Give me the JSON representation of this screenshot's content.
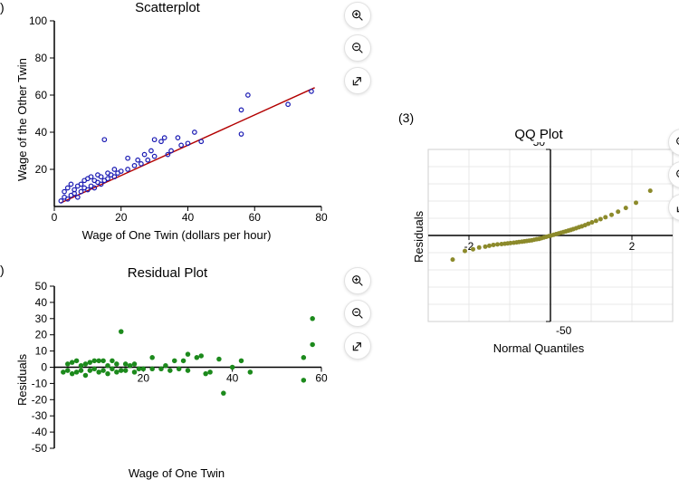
{
  "panel_indices": {
    "scatter": ")",
    "residual": ")",
    "qq": "(3)"
  },
  "scatter": {
    "type": "scatter",
    "title": "Scatterplot",
    "title_fontsize": 15,
    "xlabel": "Wage of One Twin (dollars per hour)",
    "ylabel": "Wage of the Other Twin",
    "label_fontsize": 13,
    "xlim": [
      0,
      80
    ],
    "ylim": [
      0,
      100
    ],
    "xticks": [
      0,
      20,
      40,
      60,
      80
    ],
    "yticks": [
      20,
      40,
      60,
      80,
      100
    ],
    "tick_fontsize": 12,
    "marker": {
      "shape": "circle",
      "size": 4.5,
      "stroke": "#1a1ab3",
      "fill": "none",
      "stroke_width": 1.2
    },
    "line": {
      "color": "#b30000",
      "width": 1.4,
      "x1": 2,
      "y1": 2,
      "x2": 78,
      "y2": 64
    },
    "axis_color": "#000000",
    "points": [
      [
        2,
        3
      ],
      [
        3,
        5
      ],
      [
        3,
        8
      ],
      [
        4,
        4
      ],
      [
        4,
        10
      ],
      [
        5,
        6
      ],
      [
        5,
        12
      ],
      [
        6,
        7
      ],
      [
        6,
        9
      ],
      [
        7,
        5
      ],
      [
        7,
        11
      ],
      [
        8,
        8
      ],
      [
        8,
        12
      ],
      [
        9,
        10
      ],
      [
        9,
        14
      ],
      [
        10,
        9
      ],
      [
        10,
        15
      ],
      [
        11,
        11
      ],
      [
        11,
        16
      ],
      [
        12,
        10
      ],
      [
        12,
        14
      ],
      [
        13,
        13
      ],
      [
        13,
        17
      ],
      [
        14,
        12
      ],
      [
        14,
        16
      ],
      [
        15,
        14
      ],
      [
        15,
        36
      ],
      [
        16,
        15
      ],
      [
        16,
        18
      ],
      [
        17,
        17
      ],
      [
        18,
        16
      ],
      [
        18,
        20
      ],
      [
        19,
        18
      ],
      [
        20,
        19
      ],
      [
        22,
        26
      ],
      [
        22,
        20
      ],
      [
        24,
        22
      ],
      [
        25,
        25
      ],
      [
        26,
        23
      ],
      [
        27,
        28
      ],
      [
        28,
        25
      ],
      [
        29,
        30
      ],
      [
        30,
        27
      ],
      [
        30,
        36
      ],
      [
        32,
        35
      ],
      [
        33,
        37
      ],
      [
        34,
        28
      ],
      [
        35,
        30
      ],
      [
        37,
        37
      ],
      [
        38,
        33
      ],
      [
        40,
        34
      ],
      [
        42,
        40
      ],
      [
        44,
        35
      ],
      [
        56,
        39
      ],
      [
        56,
        52
      ],
      [
        58,
        60
      ],
      [
        70,
        55
      ],
      [
        77,
        62
      ]
    ]
  },
  "residual": {
    "type": "scatter",
    "title": "Residual Plot",
    "title_fontsize": 15,
    "xlabel": "Wage of One Twin",
    "ylabel": "Residuals",
    "label_fontsize": 13,
    "xlim": [
      0,
      60
    ],
    "ylim": [
      -50,
      50
    ],
    "xticks": [
      20,
      40,
      60
    ],
    "yticks": [
      -50,
      -40,
      -30,
      -20,
      -10,
      0,
      10,
      20,
      30,
      40,
      50
    ],
    "tick_fontsize": 12,
    "marker": {
      "shape": "circle",
      "size": 5.5,
      "fill": "#1c8a1c",
      "stroke": "none"
    },
    "axis_color": "#000000",
    "points": [
      [
        2,
        -3
      ],
      [
        3,
        -2
      ],
      [
        3,
        2
      ],
      [
        4,
        -4
      ],
      [
        4,
        3
      ],
      [
        5,
        -3
      ],
      [
        5,
        4
      ],
      [
        6,
        -2
      ],
      [
        6,
        1
      ],
      [
        7,
        -5
      ],
      [
        7,
        2
      ],
      [
        8,
        -2
      ],
      [
        8,
        3
      ],
      [
        9,
        -1
      ],
      [
        9,
        4
      ],
      [
        10,
        -3
      ],
      [
        10,
        4
      ],
      [
        11,
        -2
      ],
      [
        11,
        4
      ],
      [
        12,
        -4
      ],
      [
        12,
        1
      ],
      [
        13,
        -1
      ],
      [
        13,
        4
      ],
      [
        14,
        -3
      ],
      [
        14,
        2
      ],
      [
        15,
        -2
      ],
      [
        15,
        22
      ],
      [
        16,
        -2
      ],
      [
        16,
        2
      ],
      [
        17,
        1
      ],
      [
        18,
        -3
      ],
      [
        18,
        2
      ],
      [
        19,
        -1
      ],
      [
        20,
        -1
      ],
      [
        22,
        6
      ],
      [
        22,
        -1
      ],
      [
        24,
        -1
      ],
      [
        25,
        1
      ],
      [
        26,
        -2
      ],
      [
        27,
        4
      ],
      [
        28,
        -1
      ],
      [
        29,
        4
      ],
      [
        30,
        -2
      ],
      [
        30,
        8
      ],
      [
        32,
        6
      ],
      [
        33,
        7
      ],
      [
        34,
        -4
      ],
      [
        35,
        -3
      ],
      [
        37,
        5
      ],
      [
        38,
        -16
      ],
      [
        40,
        0
      ],
      [
        42,
        4
      ],
      [
        44,
        -3
      ],
      [
        56,
        -8
      ],
      [
        56,
        6
      ],
      [
        58,
        14
      ],
      [
        58,
        30
      ]
    ]
  },
  "qq": {
    "type": "scatter",
    "title": "QQ Plot",
    "title_fontsize": 15,
    "xlabel": "Normal Quantiles",
    "ylabel": "Residuals",
    "label_fontsize": 13,
    "xlim": [
      -3,
      3
    ],
    "ylim": [
      -50,
      50
    ],
    "xticks": [
      -2,
      2
    ],
    "yticks": [
      -50,
      50
    ],
    "tick_fontsize": 12,
    "grid_color": "#e8e8e8",
    "border_color": "#cfcfcf",
    "marker": {
      "shape": "circle",
      "size": 5,
      "fill": "#8c8a2b",
      "stroke": "none"
    },
    "points": [
      [
        -2.4,
        -14
      ],
      [
        -2.1,
        -9
      ],
      [
        -1.9,
        -8
      ],
      [
        -1.75,
        -7
      ],
      [
        -1.6,
        -6.5
      ],
      [
        -1.5,
        -6
      ],
      [
        -1.4,
        -5.5
      ],
      [
        -1.3,
        -5.2
      ],
      [
        -1.2,
        -5
      ],
      [
        -1.12,
        -4.8
      ],
      [
        -1.05,
        -4.6
      ],
      [
        -0.98,
        -4.4
      ],
      [
        -0.9,
        -4.2
      ],
      [
        -0.83,
        -4
      ],
      [
        -0.77,
        -3.8
      ],
      [
        -0.7,
        -3.6
      ],
      [
        -0.64,
        -3.4
      ],
      [
        -0.58,
        -3.2
      ],
      [
        -0.52,
        -3
      ],
      [
        -0.46,
        -2.8
      ],
      [
        -0.4,
        -2.5
      ],
      [
        -0.34,
        -2.2
      ],
      [
        -0.28,
        -2
      ],
      [
        -0.22,
        -1.6
      ],
      [
        -0.16,
        -1.2
      ],
      [
        -0.1,
        -0.8
      ],
      [
        -0.04,
        -0.4
      ],
      [
        0.02,
        0
      ],
      [
        0.08,
        0.4
      ],
      [
        0.14,
        0.8
      ],
      [
        0.2,
        1.2
      ],
      [
        0.26,
        1.6
      ],
      [
        0.32,
        2
      ],
      [
        0.38,
        2.4
      ],
      [
        0.44,
        2.8
      ],
      [
        0.5,
        3.2
      ],
      [
        0.56,
        3.7
      ],
      [
        0.63,
        4.2
      ],
      [
        0.7,
        4.8
      ],
      [
        0.77,
        5.3
      ],
      [
        0.85,
        6
      ],
      [
        0.93,
        6.8
      ],
      [
        1.02,
        7.6
      ],
      [
        1.12,
        8.5
      ],
      [
        1.23,
        9.5
      ],
      [
        1.35,
        10.6
      ],
      [
        1.5,
        12
      ],
      [
        1.66,
        13.8
      ],
      [
        1.85,
        16
      ],
      [
        2.1,
        19
      ],
      [
        2.45,
        26
      ]
    ]
  },
  "toolbars": {
    "buttons": [
      "zoom-in",
      "zoom-out",
      "open-external"
    ]
  }
}
